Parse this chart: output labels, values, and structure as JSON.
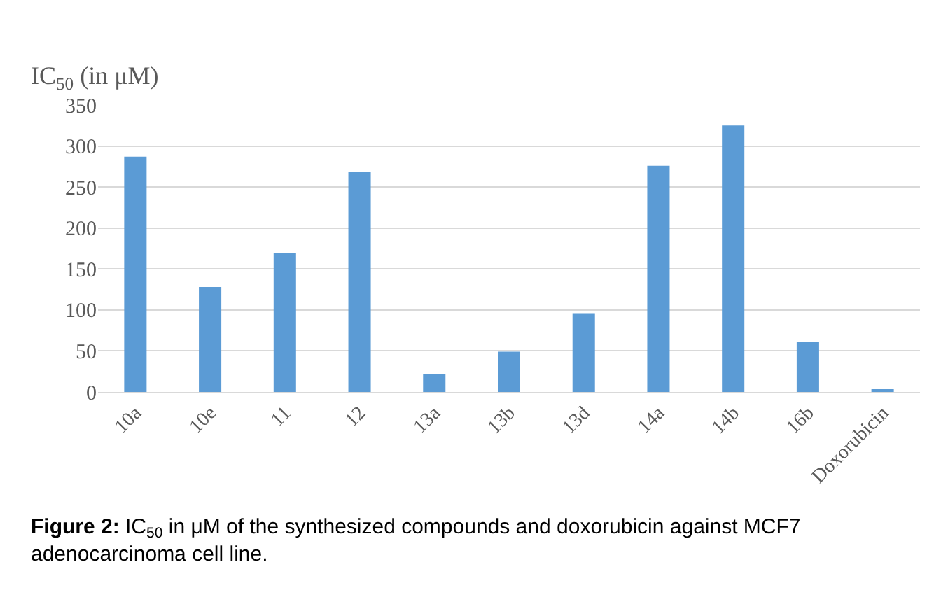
{
  "chart_data": {
    "type": "bar",
    "ylabel": "IC$_{50}$ (in μM)",
    "categories": [
      "10a",
      "10e",
      "11",
      "12",
      "13a",
      "13b",
      "13d",
      "14a",
      "14b",
      "16b",
      "Doxorubicin"
    ],
    "values": [
      287,
      128,
      169,
      269,
      22,
      49,
      96,
      276,
      325,
      61,
      3
    ],
    "color": "#5b9bd5",
    "ylim": [
      0,
      350
    ],
    "yticks": [
      0,
      50,
      100,
      150,
      200,
      250,
      300,
      350
    ],
    "grid": "y",
    "annotations": [
      "Figure 2: IC$_{50}$ in μM of the synthesized compounds and doxorubicin against MCF7 adenocarcinoma cell line."
    ]
  }
}
